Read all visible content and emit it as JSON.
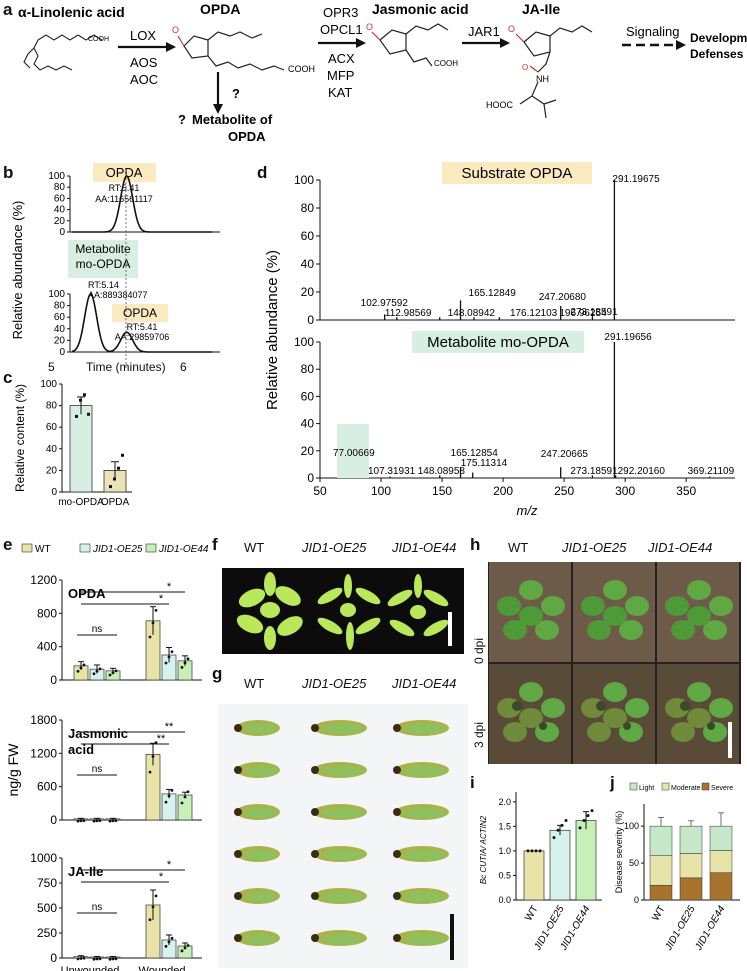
{
  "panel_labels": {
    "a": "a",
    "b": "b",
    "c": "c",
    "d": "d",
    "e": "e",
    "f": "f",
    "g": "g",
    "h": "h",
    "i": "i",
    "j": "j"
  },
  "panel_a": {
    "compounds": {
      "linolenic": "α-Linolenic acid",
      "opda": "OPDA",
      "jasmonic": "Jasmonic acid",
      "jaile": "JA-Ile"
    },
    "enzymes": {
      "lox": "LOX",
      "aos": "AOS",
      "aoc": "AOC",
      "opr3": "OPR3",
      "opcl1": "OPCL1",
      "acx": "ACX",
      "mfp": "MFP",
      "kat": "KAT",
      "jar1": "JAR1"
    },
    "atoms": {
      "o": "O",
      "nh": "NH",
      "hooc": "HOOC",
      "cooh": "COOH"
    },
    "signaling": "Signaling",
    "outcome1": "Development",
    "outcome2": "Defenses",
    "question": "?",
    "question2": "?",
    "metabolite_line1": "Metabolite of",
    "metabolite_line2": "OPDA"
  },
  "panel_b": {
    "top_label": "OPDA",
    "top_rt": "RT:5.41",
    "top_aa": "AA:116561117",
    "mid_label1": "Metabolite",
    "mid_label2": "mo-OPDA",
    "mid_rt": "RT:5.14",
    "mid_aa": "AA:889384077",
    "bot_label": "OPDA",
    "bot_rt": "RT:5.41",
    "bot_aa": "AA:29859706",
    "ylabel": "Relative abundance (%)",
    "xlabel": "Time (minutes)",
    "yticks": [
      "0",
      "20",
      "40",
      "60",
      "80",
      "100"
    ],
    "xticks": [
      "5",
      "6"
    ]
  },
  "chart_data": [
    {
      "type": "bar",
      "id": "c",
      "ylabel": "Relative content (%)",
      "categories": [
        "mo-OPDA",
        "OPDA"
      ],
      "values": [
        80,
        20
      ],
      "errors": [
        8,
        8
      ],
      "points": [
        [
          70,
          85,
          90,
          72
        ],
        [
          5,
          12,
          22,
          34
        ]
      ],
      "ylim": [
        0,
        100
      ],
      "yticks": [
        "0",
        "20",
        "40",
        "60",
        "80",
        "100"
      ],
      "colors": [
        "#d6efe2",
        "#e8e4b8"
      ]
    },
    {
      "type": "bar",
      "id": "d_top",
      "title": "Substrate OPDA",
      "xlabel": "m/z",
      "xlim": [
        50,
        390
      ],
      "ylim": [
        0,
        100
      ],
      "yticks": [
        "0",
        "20",
        "40",
        "60",
        "80",
        "100"
      ],
      "xticks": [
        "50",
        "100",
        "150",
        "200",
        "250",
        "300",
        "350"
      ],
      "peaks": [
        {
          "x": 102.97592,
          "y": 4,
          "label": "102.97592"
        },
        {
          "x": 112.98569,
          "y": 2,
          "label": "112.98569"
        },
        {
          "x": 148.08942,
          "y": 2,
          "label": "148.08942"
        },
        {
          "x": 165.12849,
          "y": 14,
          "label": "165.12849"
        },
        {
          "x": 176.12103,
          "y": 2,
          "label": "176.12103"
        },
        {
          "x": 196.96254,
          "y": 2,
          "label": "196.96254"
        },
        {
          "x": 247.2068,
          "y": 10,
          "label": "247.20680"
        },
        {
          "x": 273.18591,
          "y": 5,
          "label": "273.18591"
        },
        {
          "x": 291.19675,
          "y": 100,
          "label": "291.19675"
        }
      ]
    },
    {
      "type": "bar",
      "id": "d_bottom",
      "title": "Metabolite mo-OPDA",
      "xlabel": "m/z",
      "ylabel": "Relative abundance (%)",
      "xlim": [
        50,
        390
      ],
      "ylim": [
        0,
        100
      ],
      "yticks": [
        "0",
        "20",
        "40",
        "60",
        "80",
        "100"
      ],
      "xticks": [
        "50",
        "100",
        "150",
        "200",
        "250",
        "300",
        "350"
      ],
      "peaks": [
        {
          "x": 77.00669,
          "y": 16,
          "label": "77.00669"
        },
        {
          "x": 107.31931,
          "y": 1,
          "label": "107.31931"
        },
        {
          "x": 148.08958,
          "y": 2,
          "label": "148.08958"
        },
        {
          "x": 165.12854,
          "y": 8,
          "label": "165.12854"
        },
        {
          "x": 175.11314,
          "y": 4,
          "label": "175.11314"
        },
        {
          "x": 247.20665,
          "y": 8,
          "label": "247.20665"
        },
        {
          "x": 273.18591,
          "y": 2,
          "label": "273.18591"
        },
        {
          "x": 291.19656,
          "y": 100,
          "label": "291.19656"
        },
        {
          "x": 292.2016,
          "y": 2,
          "label": "292.20160"
        },
        {
          "x": 369.21109,
          "y": 1,
          "label": "369.21109"
        }
      ]
    },
    {
      "type": "bar",
      "id": "e",
      "ylabel": "ng/g FW",
      "legend": [
        "WT",
        "JID1-OE25",
        "JID1-OE44"
      ],
      "colors": [
        "#e8e4a8",
        "#d6f2ec",
        "#c6f0b8"
      ],
      "categories": [
        "Unwounded",
        "Wounded"
      ],
      "subpanels": [
        {
          "name": "OPDA",
          "ylim": [
            0,
            1200
          ],
          "yticks": [
            "0",
            "400",
            "800",
            "1200"
          ],
          "values": [
            [
              170,
              130,
              110
            ],
            [
              710,
              300,
              230
            ]
          ],
          "errors": [
            [
              50,
              50,
              30
            ],
            [
              170,
              90,
              60
            ]
          ],
          "sig": [
            {
              "g": 0,
              "text": "ns"
            },
            {
              "g": 1,
              "text": "*",
              "a": 0,
              "b": 1
            },
            {
              "g": 1,
              "text": "*",
              "a": 0,
              "b": 2
            }
          ]
        },
        {
          "name": "Jasmonic acid",
          "ylim": [
            0,
            1800
          ],
          "yticks": [
            "0",
            "600",
            "1200",
            "1800"
          ],
          "values": [
            [
              20,
              20,
              20
            ],
            [
              1180,
              470,
              450
            ]
          ],
          "errors": [
            [
              10,
              10,
              10
            ],
            [
              200,
              80,
              50
            ]
          ],
          "sig": [
            {
              "g": 0,
              "text": "ns"
            },
            {
              "g": 1,
              "text": "**",
              "a": 0,
              "b": 1
            },
            {
              "g": 1,
              "text": "**",
              "a": 0,
              "b": 2
            }
          ]
        },
        {
          "name": "JA-Ile",
          "ylim": [
            0,
            1000
          ],
          "yticks": [
            "0",
            "250",
            "500",
            "750",
            "1000"
          ],
          "values": [
            [
              15,
              10,
              10
            ],
            [
              530,
              180,
              120
            ]
          ],
          "errors": [
            [
              8,
              5,
              5
            ],
            [
              150,
              50,
              30
            ]
          ],
          "sig": [
            {
              "g": 0,
              "text": "ns"
            },
            {
              "g": 1,
              "text": "*",
              "a": 0,
              "b": 1
            },
            {
              "g": 1,
              "text": "*",
              "a": 0,
              "b": 2
            }
          ]
        }
      ]
    },
    {
      "type": "bar",
      "id": "i",
      "ylabel": "Bc CUTIA/ ACTIN2",
      "categories": [
        "WT",
        "JID1-OE25",
        "JID1-OE44"
      ],
      "values": [
        1.0,
        1.42,
        1.62
      ],
      "errors": [
        0,
        0.1,
        0.18
      ],
      "ylim": [
        0,
        2.2
      ],
      "yticks": [
        "0.0",
        "0.5",
        "1.0",
        "1.5",
        "2.0"
      ],
      "colors": [
        "#e8e4a8",
        "#d6f2ec",
        "#c6f0b8"
      ]
    },
    {
      "type": "bar",
      "id": "j",
      "ylabel": "Disease severity (%)",
      "legend": [
        "Light",
        "Moderate",
        "Severe"
      ],
      "legend_colors": [
        "#c6e8c8",
        "#e6e4a8",
        "#a8732c"
      ],
      "categories": [
        "WT",
        "JID1-OE25",
        "JID1-OE44"
      ],
      "series": [
        {
          "name": "Severe",
          "values": [
            20,
            30,
            37
          ]
        },
        {
          "name": "Moderate",
          "values": [
            40,
            33,
            30
          ]
        },
        {
          "name": "Light",
          "values": [
            40,
            37,
            33
          ]
        }
      ],
      "errors": [
        20,
        12,
        30
      ],
      "ylim": [
        0,
        130
      ],
      "yticks": [
        "0",
        "50",
        "100"
      ]
    }
  ],
  "panel_f": {
    "labels": [
      "WT",
      "JID1-OE25",
      "JID1-OE44"
    ]
  },
  "panel_g": {
    "labels": [
      "WT",
      "JID1-OE25",
      "JID1-OE44"
    ]
  },
  "panel_h": {
    "labels": [
      "WT",
      "JID1-OE25",
      "JID1-OE44"
    ],
    "rows": [
      "0 dpi",
      "3 dpi"
    ]
  }
}
